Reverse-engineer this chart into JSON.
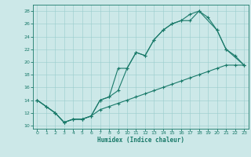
{
  "xlabel": "Humidex (Indice chaleur)",
  "bg_color": "#cce8e8",
  "grid_color": "#99cccc",
  "line_color": "#1a7a6a",
  "xlim": [
    -0.5,
    23.5
  ],
  "ylim": [
    9.5,
    29.0
  ],
  "xticks": [
    0,
    1,
    2,
    3,
    4,
    5,
    6,
    7,
    8,
    9,
    10,
    11,
    12,
    13,
    14,
    15,
    16,
    17,
    18,
    19,
    20,
    21,
    22,
    23
  ],
  "yticks": [
    10,
    12,
    14,
    16,
    18,
    20,
    22,
    24,
    26,
    28
  ],
  "c1_x": [
    0,
    1,
    2,
    3,
    4,
    5,
    6,
    7,
    8,
    9,
    10,
    11,
    12,
    13,
    14,
    15,
    16,
    17,
    18,
    19,
    20,
    21,
    22,
    23
  ],
  "c1_y": [
    14,
    13,
    12,
    10.5,
    11,
    11,
    11.5,
    12.5,
    13,
    13.5,
    14,
    14.5,
    15,
    15.5,
    16,
    16.5,
    17,
    17.5,
    18,
    18.5,
    19,
    19.5,
    19.5,
    19.5
  ],
  "c2_x": [
    0,
    1,
    2,
    3,
    4,
    5,
    6,
    7,
    8,
    9,
    10,
    11,
    12,
    13,
    14,
    15,
    16,
    17,
    18,
    19,
    20,
    21,
    22,
    23
  ],
  "c2_y": [
    14,
    13,
    12,
    10.5,
    11,
    11,
    11.5,
    14,
    14.5,
    15.5,
    19,
    21.5,
    21,
    23.5,
    25,
    26,
    26.5,
    26.5,
    28,
    27,
    25,
    22,
    21,
    19.5
  ],
  "c3_x": [
    0,
    2,
    3,
    4,
    5,
    6,
    7,
    8,
    9,
    10,
    11,
    12,
    13,
    14,
    15,
    16,
    17,
    18,
    20,
    21,
    23
  ],
  "c3_y": [
    14,
    12,
    10.5,
    11,
    11,
    11.5,
    14,
    14.5,
    19,
    19,
    21.5,
    21,
    23.5,
    25,
    26,
    26.5,
    27.5,
    28,
    25,
    22,
    19.5
  ]
}
